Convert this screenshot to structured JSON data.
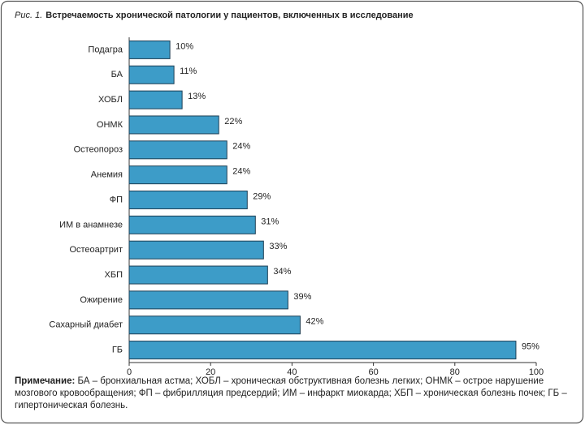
{
  "chart_data": {
    "type": "bar",
    "orientation": "horizontal",
    "figure_label": "Рис. 1.",
    "title": "Встречаемость хронической патологии у пациентов, включенных в исследование",
    "categories": [
      "Подагра",
      "БА",
      "ХОБЛ",
      "ОНМК",
      "Остеопороз",
      "Анемия",
      "ФП",
      "ИМ в анамнезе",
      "Остеоартрит",
      "ХБП",
      "Ожирение",
      "Сахарный диабет",
      "ГБ"
    ],
    "values": [
      10,
      11,
      13,
      22,
      24,
      24,
      29,
      31,
      33,
      34,
      39,
      42,
      95
    ],
    "value_labels": [
      "10%",
      "11%",
      "13%",
      "22%",
      "24%",
      "24%",
      "29%",
      "31%",
      "33%",
      "34%",
      "39%",
      "42%",
      "95%"
    ],
    "color": "#3d9cc8",
    "xlim": [
      0,
      100
    ],
    "xticks": [
      0,
      20,
      40,
      60,
      80,
      100
    ],
    "note_label": "Примечание:",
    "note": "БА – бронхиальная астма; ХОБЛ – хроническая обструктивная болезнь легких; ОНМК – острое нарушение мозгового кровообращения; ФП – фибрилляция предсердий; ИМ – инфаркт миокарда; ХБП – хроническая болезнь почек; ГБ – гипертоническая болезнь."
  }
}
